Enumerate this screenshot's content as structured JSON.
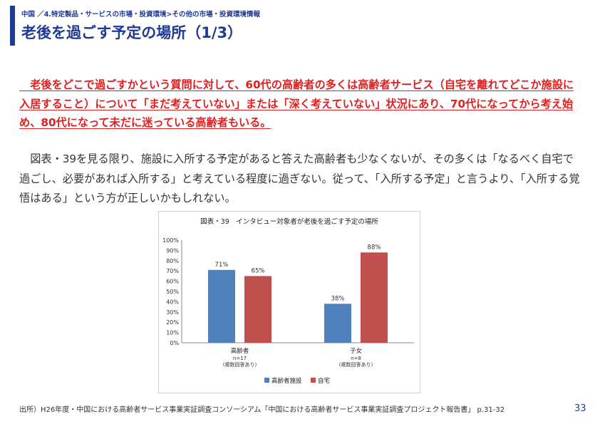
{
  "header": {
    "breadcrumb": "中国 ／4.特定製品・サービスの市場・投資環境>その他の市場・投資環境情報",
    "title": "老後を過ごす予定の場所（1/3）"
  },
  "lead_text": "　老後をどこで過ごすかという質問に対して、60代の高齢者の多くは高齢者サービス（自宅を離れてどこか施設に入居すること）について「まだ考えていない」または「深く考えていない」状況にあり、70代になってから考え始め、80代になって未だに迷っている高齢者もいる。",
  "body_text": "　図表・39を見る限り、施設に入所する予定があると答えた高齢者も少なくないが、その多くは「なるべく自宅で過ごし、必要があれば入所する」と考えている程度に過ぎない。従って、「入所する予定」と言うより、「入所する覚悟はある」という方が正しいかもしれない。",
  "chart_data": {
    "type": "bar",
    "title": "図表・39　インタビュー対象者が老後を過ごす予定の場所",
    "categories": [
      "高齢者",
      "子女"
    ],
    "category_sublabels": [
      [
        "n=17",
        "(複数回答あり)"
      ],
      [
        "n=8",
        "(複数回答あり)"
      ]
    ],
    "series": [
      {
        "name": "高齢者施設",
        "color": "#4f81bd",
        "values": [
          71,
          38
        ]
      },
      {
        "name": "自宅",
        "color": "#c0504d",
        "values": [
          65,
          88
        ]
      }
    ],
    "ylim": [
      0,
      100
    ],
    "yticks": [
      "0%",
      "10%",
      "20%",
      "30%",
      "40%",
      "50%",
      "60%",
      "70%",
      "80%",
      "90%",
      "100%"
    ],
    "value_suffix": "%",
    "legend_position": "bottom"
  },
  "footer": {
    "source": "出所）H26年度・中国における高齢者サービス事業実証調査コンソーシアム「中国における高齢者サービス事業実証調査プロジェクト報告書」 p.31-32",
    "page_number": "33"
  }
}
